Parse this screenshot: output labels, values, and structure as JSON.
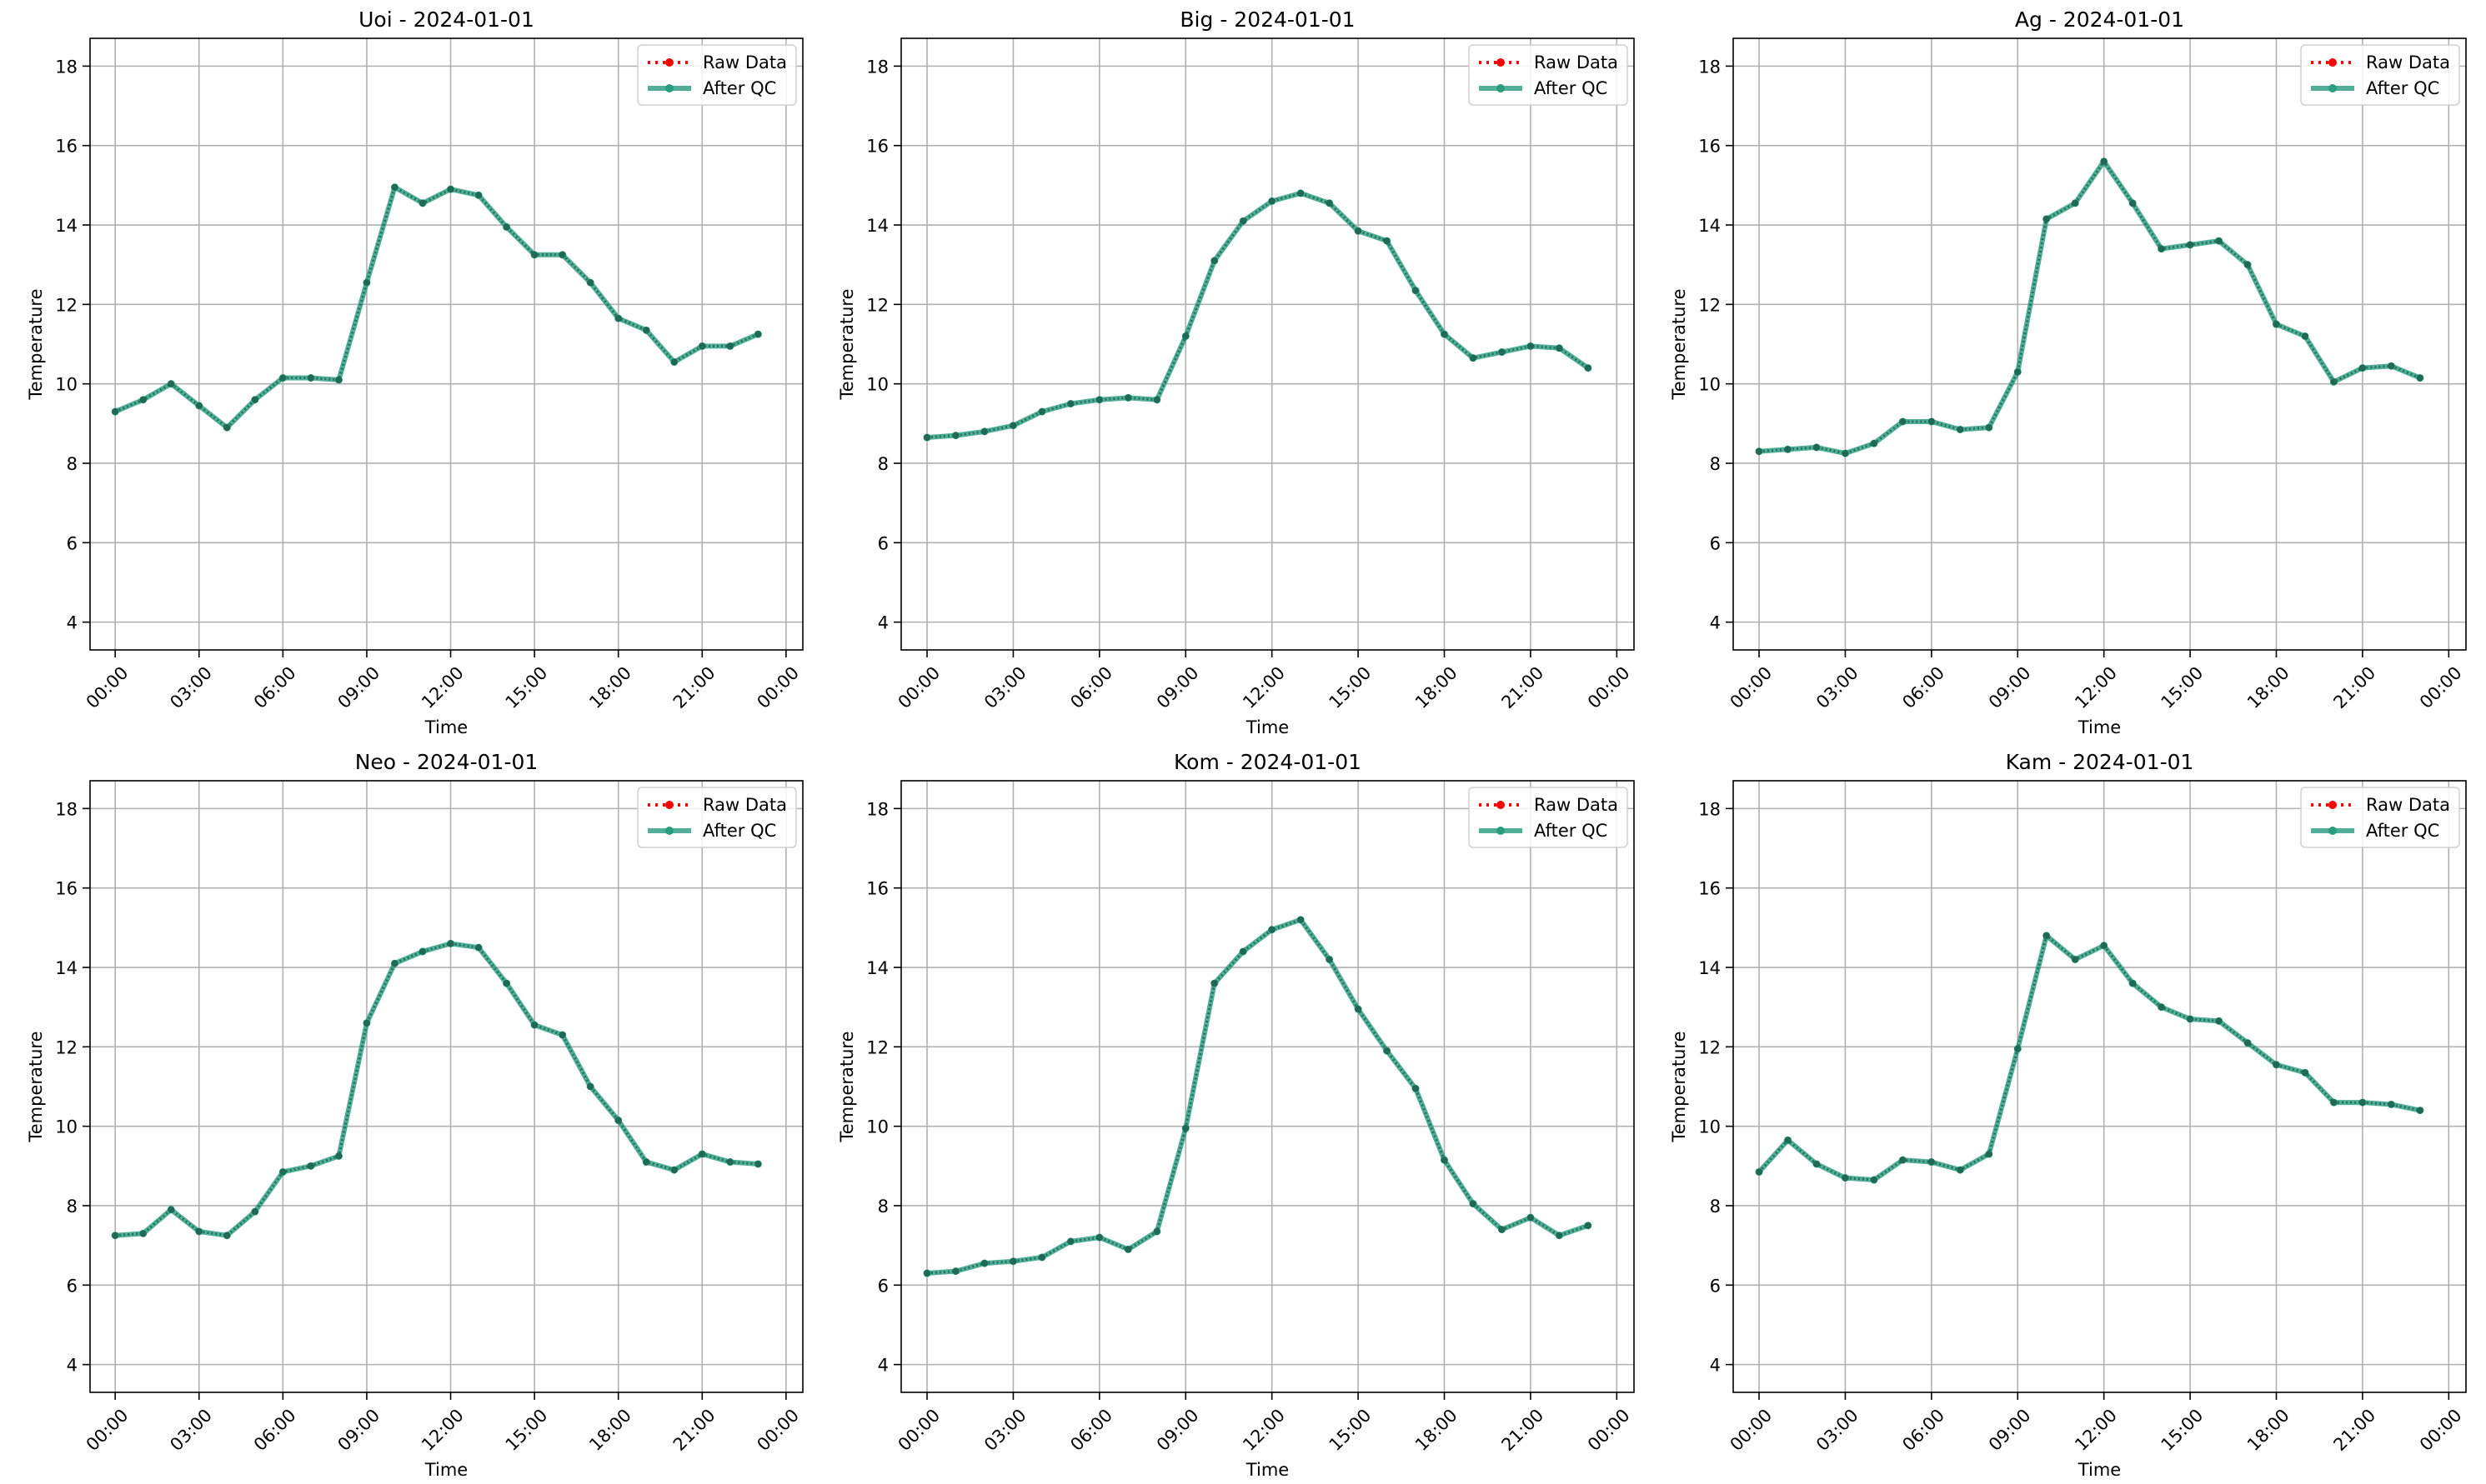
{
  "chart_data": [
    {
      "type": "line",
      "title": "Uoi - 2024-01-01",
      "xlabel": "Time",
      "ylabel": "Temperature",
      "x_range": [
        "00:00",
        "00:00"
      ],
      "ylim": [
        3.3,
        18.7
      ],
      "grid": true,
      "legend_position": "top-right",
      "x_ticks": [
        "00:00",
        "03:00",
        "06:00",
        "09:00",
        "12:00",
        "15:00",
        "18:00",
        "21:00",
        "00:00"
      ],
      "y_ticks": [
        4,
        6,
        8,
        10,
        12,
        14,
        16,
        18
      ],
      "x_hours": [
        0,
        1,
        2,
        3,
        4,
        5,
        6,
        7,
        8,
        9,
        10,
        11,
        12,
        13,
        14,
        15,
        16,
        17,
        18,
        19,
        20,
        21,
        22,
        23
      ],
      "series": [
        {
          "name": "Raw Data",
          "color": "#ff0000",
          "style": "dotted",
          "values": [
            9.3,
            9.6,
            10.0,
            9.45,
            8.9,
            9.6,
            10.15,
            10.15,
            10.1,
            12.55,
            14.95,
            14.55,
            14.9,
            14.75,
            13.95,
            13.25,
            13.25,
            12.55,
            11.65,
            11.35,
            10.55,
            10.95,
            10.95,
            11.25
          ]
        },
        {
          "name": "After QC",
          "color": "#2a9d7f",
          "style": "solid",
          "values": [
            9.3,
            9.6,
            10.0,
            9.45,
            8.9,
            9.6,
            10.15,
            10.15,
            10.1,
            12.55,
            14.95,
            14.55,
            14.9,
            14.75,
            13.95,
            13.25,
            13.25,
            12.55,
            11.65,
            11.35,
            10.55,
            10.95,
            10.95,
            11.25
          ]
        }
      ]
    },
    {
      "type": "line",
      "title": "Big - 2024-01-01",
      "xlabel": "Time",
      "ylabel": "Temperature",
      "x_range": [
        "00:00",
        "00:00"
      ],
      "ylim": [
        3.3,
        18.7
      ],
      "grid": true,
      "legend_position": "top-right",
      "x_ticks": [
        "00:00",
        "03:00",
        "06:00",
        "09:00",
        "12:00",
        "15:00",
        "18:00",
        "21:00",
        "00:00"
      ],
      "y_ticks": [
        4,
        6,
        8,
        10,
        12,
        14,
        16,
        18
      ],
      "x_hours": [
        0,
        1,
        2,
        3,
        4,
        5,
        6,
        7,
        8,
        9,
        10,
        11,
        12,
        13,
        14,
        15,
        16,
        17,
        18,
        19,
        20,
        21,
        22,
        23
      ],
      "series": [
        {
          "name": "Raw Data",
          "color": "#ff0000",
          "style": "dotted",
          "values": [
            8.65,
            8.7,
            8.8,
            8.95,
            9.3,
            9.5,
            9.6,
            9.65,
            9.6,
            11.2,
            13.1,
            14.1,
            14.6,
            14.8,
            14.55,
            13.85,
            13.6,
            12.35,
            11.25,
            10.65,
            10.8,
            10.95,
            10.9,
            10.4
          ]
        },
        {
          "name": "After QC",
          "color": "#2a9d7f",
          "style": "solid",
          "values": [
            8.65,
            8.7,
            8.8,
            8.95,
            9.3,
            9.5,
            9.6,
            9.65,
            9.6,
            11.2,
            13.1,
            14.1,
            14.6,
            14.8,
            14.55,
            13.85,
            13.6,
            12.35,
            11.25,
            10.65,
            10.8,
            10.95,
            10.9,
            10.4
          ]
        }
      ]
    },
    {
      "type": "line",
      "title": "Ag - 2024-01-01",
      "xlabel": "Time",
      "ylabel": "Temperature",
      "x_range": [
        "00:00",
        "00:00"
      ],
      "ylim": [
        3.3,
        18.7
      ],
      "grid": true,
      "legend_position": "top-right",
      "x_ticks": [
        "00:00",
        "03:00",
        "06:00",
        "09:00",
        "12:00",
        "15:00",
        "18:00",
        "21:00",
        "00:00"
      ],
      "y_ticks": [
        4,
        6,
        8,
        10,
        12,
        14,
        16,
        18
      ],
      "x_hours": [
        0,
        1,
        2,
        3,
        4,
        5,
        6,
        7,
        8,
        9,
        10,
        11,
        12,
        13,
        14,
        15,
        16,
        17,
        18,
        19,
        20,
        21,
        22,
        23
      ],
      "series": [
        {
          "name": "Raw Data",
          "color": "#ff0000",
          "style": "dotted",
          "values": [
            8.3,
            8.35,
            8.4,
            8.25,
            8.5,
            9.05,
            9.05,
            8.85,
            8.9,
            10.3,
            14.15,
            14.55,
            15.6,
            14.55,
            13.4,
            13.5,
            13.6,
            13.0,
            11.5,
            11.2,
            10.05,
            10.4,
            10.45,
            10.15
          ]
        },
        {
          "name": "After QC",
          "color": "#2a9d7f",
          "style": "solid",
          "values": [
            8.3,
            8.35,
            8.4,
            8.25,
            8.5,
            9.05,
            9.05,
            8.85,
            8.9,
            10.3,
            14.15,
            14.55,
            15.6,
            14.55,
            13.4,
            13.5,
            13.6,
            13.0,
            11.5,
            11.2,
            10.05,
            10.4,
            10.45,
            10.15
          ]
        }
      ]
    },
    {
      "type": "line",
      "title": "Neo - 2024-01-01",
      "xlabel": "Time",
      "ylabel": "Temperature",
      "x_range": [
        "00:00",
        "00:00"
      ],
      "ylim": [
        3.3,
        18.7
      ],
      "grid": true,
      "legend_position": "top-right",
      "x_ticks": [
        "00:00",
        "03:00",
        "06:00",
        "09:00",
        "12:00",
        "15:00",
        "18:00",
        "21:00",
        "00:00"
      ],
      "y_ticks": [
        4,
        6,
        8,
        10,
        12,
        14,
        16,
        18
      ],
      "x_hours": [
        0,
        1,
        2,
        3,
        4,
        5,
        6,
        7,
        8,
        9,
        10,
        11,
        12,
        13,
        14,
        15,
        16,
        17,
        18,
        19,
        20,
        21,
        22,
        23
      ],
      "series": [
        {
          "name": "Raw Data",
          "color": "#ff0000",
          "style": "dotted",
          "values": [
            7.25,
            7.3,
            7.9,
            7.35,
            7.25,
            7.85,
            8.85,
            9.0,
            9.25,
            12.6,
            14.1,
            14.4,
            14.6,
            14.5,
            13.6,
            12.55,
            12.3,
            11.0,
            10.15,
            9.1,
            8.9,
            9.3,
            9.1,
            9.05
          ]
        },
        {
          "name": "After QC",
          "color": "#2a9d7f",
          "style": "solid",
          "values": [
            7.25,
            7.3,
            7.9,
            7.35,
            7.25,
            7.85,
            8.85,
            9.0,
            9.25,
            12.6,
            14.1,
            14.4,
            14.6,
            14.5,
            13.6,
            12.55,
            12.3,
            11.0,
            10.15,
            9.1,
            8.9,
            9.3,
            9.1,
            9.05
          ]
        }
      ]
    },
    {
      "type": "line",
      "title": "Kom - 2024-01-01",
      "xlabel": "Time",
      "ylabel": "Temperature",
      "x_range": [
        "00:00",
        "00:00"
      ],
      "ylim": [
        3.3,
        18.7
      ],
      "grid": true,
      "legend_position": "top-right",
      "x_ticks": [
        "00:00",
        "03:00",
        "06:00",
        "09:00",
        "12:00",
        "15:00",
        "18:00",
        "21:00",
        "00:00"
      ],
      "y_ticks": [
        4,
        6,
        8,
        10,
        12,
        14,
        16,
        18
      ],
      "x_hours": [
        0,
        1,
        2,
        3,
        4,
        5,
        6,
        7,
        8,
        9,
        10,
        11,
        12,
        13,
        14,
        15,
        16,
        17,
        18,
        19,
        20,
        21,
        22,
        23
      ],
      "series": [
        {
          "name": "Raw Data",
          "color": "#ff0000",
          "style": "dotted",
          "values": [
            6.3,
            6.35,
            6.55,
            6.6,
            6.7,
            7.1,
            7.2,
            6.9,
            7.35,
            9.95,
            13.6,
            14.4,
            14.95,
            15.2,
            14.2,
            12.95,
            11.9,
            10.95,
            9.15,
            8.05,
            7.4,
            7.7,
            7.25,
            7.5
          ]
        },
        {
          "name": "After QC",
          "color": "#2a9d7f",
          "style": "solid",
          "values": [
            6.3,
            6.35,
            6.55,
            6.6,
            6.7,
            7.1,
            7.2,
            6.9,
            7.35,
            9.95,
            13.6,
            14.4,
            14.95,
            15.2,
            14.2,
            12.95,
            11.9,
            10.95,
            9.15,
            8.05,
            7.4,
            7.7,
            7.25,
            7.5
          ]
        }
      ]
    },
    {
      "type": "line",
      "title": "Kam - 2024-01-01",
      "xlabel": "Time",
      "ylabel": "Temperature",
      "x_range": [
        "00:00",
        "00:00"
      ],
      "ylim": [
        3.3,
        18.7
      ],
      "grid": true,
      "legend_position": "top-right",
      "x_ticks": [
        "00:00",
        "03:00",
        "06:00",
        "09:00",
        "12:00",
        "15:00",
        "18:00",
        "21:00",
        "00:00"
      ],
      "y_ticks": [
        4,
        6,
        8,
        10,
        12,
        14,
        16,
        18
      ],
      "x_hours": [
        0,
        1,
        2,
        3,
        4,
        5,
        6,
        7,
        8,
        9,
        10,
        11,
        12,
        13,
        14,
        15,
        16,
        17,
        18,
        19,
        20,
        21,
        22,
        23
      ],
      "series": [
        {
          "name": "Raw Data",
          "color": "#ff0000",
          "style": "dotted",
          "values": [
            8.85,
            9.65,
            9.05,
            8.7,
            8.65,
            9.15,
            9.1,
            8.9,
            9.3,
            11.95,
            14.8,
            14.2,
            14.55,
            13.6,
            13.0,
            12.7,
            12.65,
            12.1,
            11.55,
            11.35,
            10.6,
            10.6,
            10.55,
            10.4
          ]
        },
        {
          "name": "After QC",
          "color": "#2a9d7f",
          "style": "solid",
          "values": [
            8.85,
            9.65,
            9.05,
            8.7,
            8.65,
            9.15,
            9.1,
            8.9,
            9.3,
            11.95,
            14.8,
            14.2,
            14.55,
            13.6,
            13.0,
            12.7,
            12.65,
            12.1,
            11.55,
            11.35,
            10.6,
            10.6,
            10.55,
            10.4
          ]
        }
      ]
    }
  ]
}
